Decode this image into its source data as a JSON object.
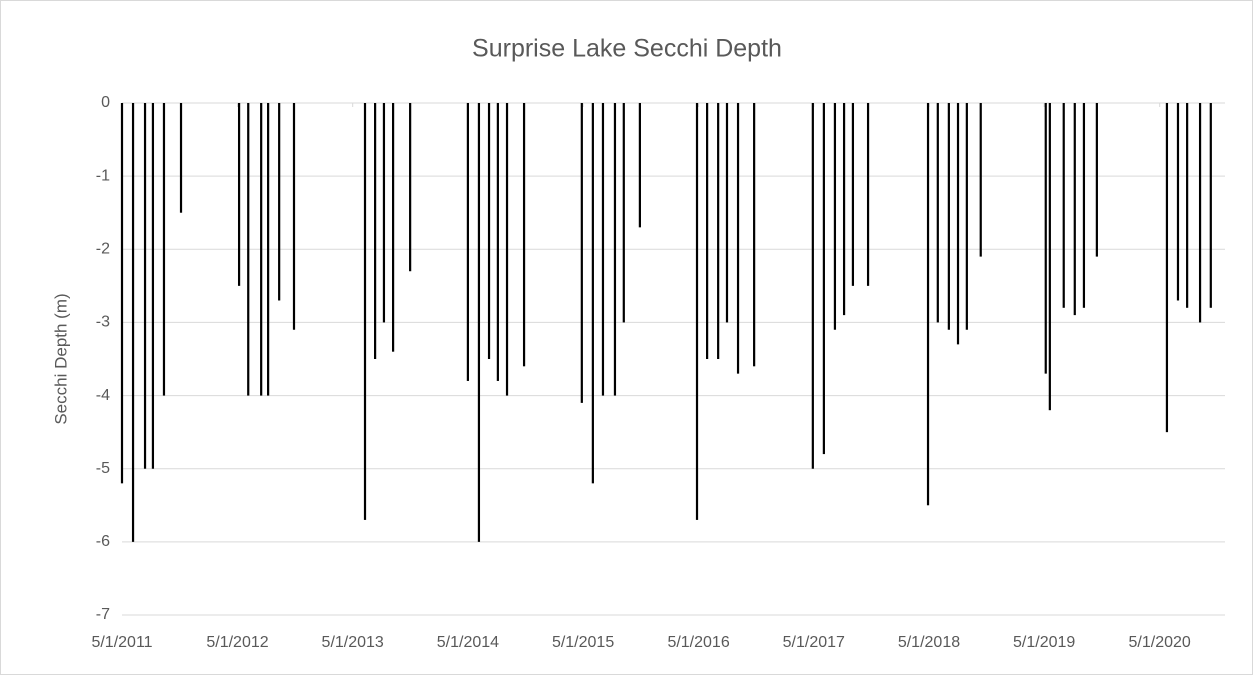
{
  "chart_data": {
    "type": "bar",
    "title": "Surprise Lake Secchi Depth",
    "y_label": "Secchi Depth (m)",
    "color": "#000000",
    "grid": true,
    "x": [
      "2011-05-01",
      "2011-06-05",
      "2011-07-13",
      "2011-08-07",
      "2011-09-11",
      "2011-11-04",
      "2012-05-06",
      "2012-06-04",
      "2012-07-15",
      "2012-08-06",
      "2012-09-10",
      "2012-10-27",
      "2013-06-09",
      "2013-07-11",
      "2013-08-08",
      "2013-09-06",
      "2013-10-30",
      "2014-05-01",
      "2014-06-05",
      "2014-07-07",
      "2014-08-04",
      "2014-09-02",
      "2014-10-26",
      "2015-04-27",
      "2015-06-01",
      "2015-07-03",
      "2015-08-10",
      "2015-09-07",
      "2015-10-28",
      "2016-04-26",
      "2016-05-28",
      "2016-07-02",
      "2016-07-30",
      "2016-09-03",
      "2016-10-24",
      "2017-04-28",
      "2017-06-02",
      "2017-07-07",
      "2017-08-05",
      "2017-09-02",
      "2017-10-20",
      "2018-04-28",
      "2018-05-29",
      "2018-07-03",
      "2018-08-01",
      "2018-08-29",
      "2018-10-12",
      "2019-05-06",
      "2019-05-19",
      "2019-07-02",
      "2019-08-06",
      "2019-09-04",
      "2019-10-15",
      "2020-05-24",
      "2020-06-28",
      "2020-07-27",
      "2020-09-06",
      "2020-10-10"
    ],
    "values": [
      -5.2,
      -6.0,
      -5.0,
      -5.0,
      -4.0,
      -1.5,
      -2.5,
      -4.0,
      -4.0,
      -4.0,
      -2.7,
      -3.1,
      -5.7,
      -3.5,
      -3.0,
      -3.4,
      -2.3,
      -3.8,
      -6.0,
      -3.5,
      -3.8,
      -4.0,
      -3.6,
      -4.1,
      -5.2,
      -4.0,
      -4.0,
      -3.0,
      -1.7,
      -5.7,
      -3.5,
      -3.5,
      -3.0,
      -3.7,
      -3.6,
      -5.0,
      -4.8,
      -3.1,
      -2.9,
      -2.5,
      -2.5,
      -5.5,
      -3.0,
      -3.1,
      -3.3,
      -3.1,
      -2.1,
      -3.7,
      -4.2,
      -2.8,
      -2.9,
      -2.8,
      -2.1,
      -4.5,
      -2.7,
      -2.8,
      -3.0,
      -2.8
    ],
    "xlim": [
      "2011-05-01",
      "2020-11-24"
    ],
    "xticks": [
      {
        "value": "2011-05-01",
        "label": "5/1/2011"
      },
      {
        "value": "2012-05-01",
        "label": "5/1/2012"
      },
      {
        "value": "2013-05-01",
        "label": "5/1/2013"
      },
      {
        "value": "2014-05-01",
        "label": "5/1/2014"
      },
      {
        "value": "2015-05-01",
        "label": "5/1/2015"
      },
      {
        "value": "2016-05-01",
        "label": "5/1/2016"
      },
      {
        "value": "2017-05-01",
        "label": "5/1/2017"
      },
      {
        "value": "2018-05-01",
        "label": "5/1/2018"
      },
      {
        "value": "2019-05-01",
        "label": "5/1/2019"
      },
      {
        "value": "2020-05-01",
        "label": "5/1/2020"
      }
    ],
    "ylim": [
      -7,
      0
    ],
    "yticks": [
      0,
      -1,
      -2,
      -3,
      -4,
      -5,
      -6,
      -7
    ]
  }
}
